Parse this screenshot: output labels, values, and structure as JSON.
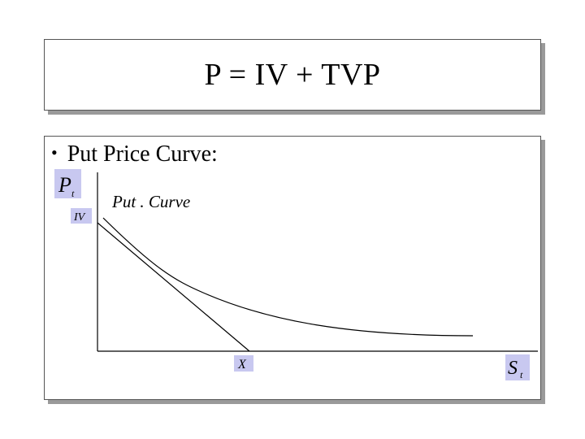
{
  "slide": {
    "title": "P = IV + TVP",
    "bullet_text": "Put Price Curve:"
  },
  "diagram": {
    "y_axis_label_main": "P",
    "y_axis_label_sub": "t",
    "iv_label": "IV",
    "curve_label": "Put . Curve",
    "x_point_label": "X",
    "x_axis_label_main": "S",
    "x_axis_label_sub": "t",
    "label_box_color": "#c8c8f0"
  }
}
